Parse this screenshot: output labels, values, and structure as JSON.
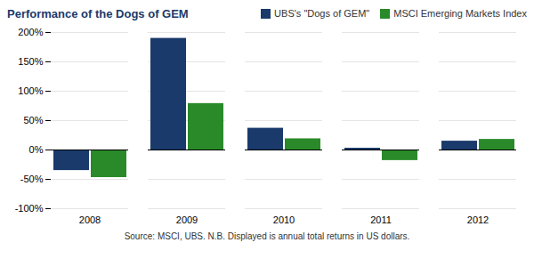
{
  "chart_data": {
    "type": "bar",
    "title": "Performance of the Dogs of GEM",
    "categories": [
      "2008",
      "2009",
      "2010",
      "2011",
      "2012"
    ],
    "series": [
      {
        "name": "UBS's \"Dogs of GEM\"",
        "color": "#1a3a6b",
        "values": [
          -35,
          190,
          37,
          3,
          15
        ]
      },
      {
        "name": "MSCI Emerging Markets Index",
        "color": "#2a8a2a",
        "values": [
          -47,
          79,
          19,
          -18,
          18
        ]
      }
    ],
    "ylim": [
      -100,
      200
    ],
    "yticks": [
      {
        "value": -100,
        "label": "-100%"
      },
      {
        "value": -50,
        "label": "-50%"
      },
      {
        "value": 0,
        "label": "0%"
      },
      {
        "value": 50,
        "label": "50%"
      },
      {
        "value": 100,
        "label": "100%"
      },
      {
        "value": 150,
        "label": "150%"
      },
      {
        "value": 200,
        "label": "200%"
      }
    ],
    "grid": true,
    "legend": "upper right",
    "annotations": [
      "Source: MSCI, UBS. N.B. Displayed is annual total returns in US dollars."
    ]
  }
}
